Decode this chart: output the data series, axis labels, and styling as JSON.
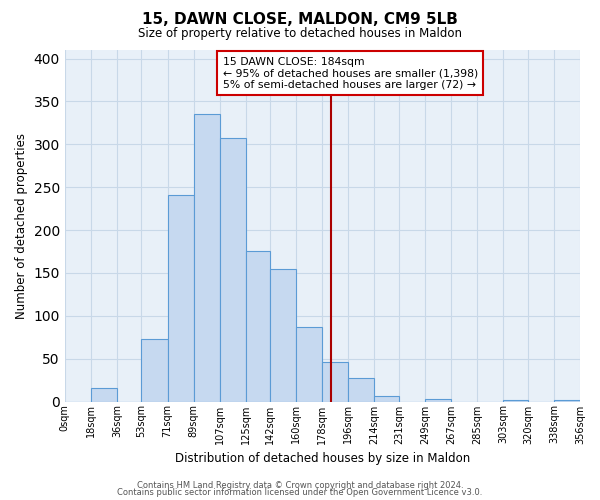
{
  "title": "15, DAWN CLOSE, MALDON, CM9 5LB",
  "subtitle": "Size of property relative to detached houses in Maldon",
  "xlabel": "Distribution of detached houses by size in Maldon",
  "ylabel": "Number of detached properties",
  "bar_edges": [
    0,
    18,
    36,
    53,
    71,
    89,
    107,
    125,
    142,
    160,
    178,
    196,
    214,
    231,
    249,
    267,
    285,
    303,
    320,
    338,
    356
  ],
  "bar_heights": [
    0,
    16,
    0,
    73,
    241,
    335,
    307,
    176,
    155,
    87,
    46,
    27,
    7,
    0,
    3,
    0,
    0,
    2,
    0,
    2
  ],
  "bar_color": "#c6d9f0",
  "bar_edge_color": "#5b9bd5",
  "property_line_x": 184,
  "property_line_color": "#aa0000",
  "annotation_text": "15 DAWN CLOSE: 184sqm\n← 95% of detached houses are smaller (1,398)\n5% of semi-detached houses are larger (72) →",
  "annotation_box_color": "#ffffff",
  "annotation_box_edge_color": "#cc0000",
  "tick_labels": [
    "0sqm",
    "18sqm",
    "36sqm",
    "53sqm",
    "71sqm",
    "89sqm",
    "107sqm",
    "125sqm",
    "142sqm",
    "160sqm",
    "178sqm",
    "196sqm",
    "214sqm",
    "231sqm",
    "249sqm",
    "267sqm",
    "285sqm",
    "303sqm",
    "320sqm",
    "338sqm",
    "356sqm"
  ],
  "ylim": [
    0,
    410
  ],
  "xlim": [
    0,
    356
  ],
  "footer_line1": "Contains HM Land Registry data © Crown copyright and database right 2024.",
  "footer_line2": "Contains public sector information licensed under the Open Government Licence v3.0.",
  "grid_color": "#c8d8e8",
  "bg_color": "#e8f0f8"
}
